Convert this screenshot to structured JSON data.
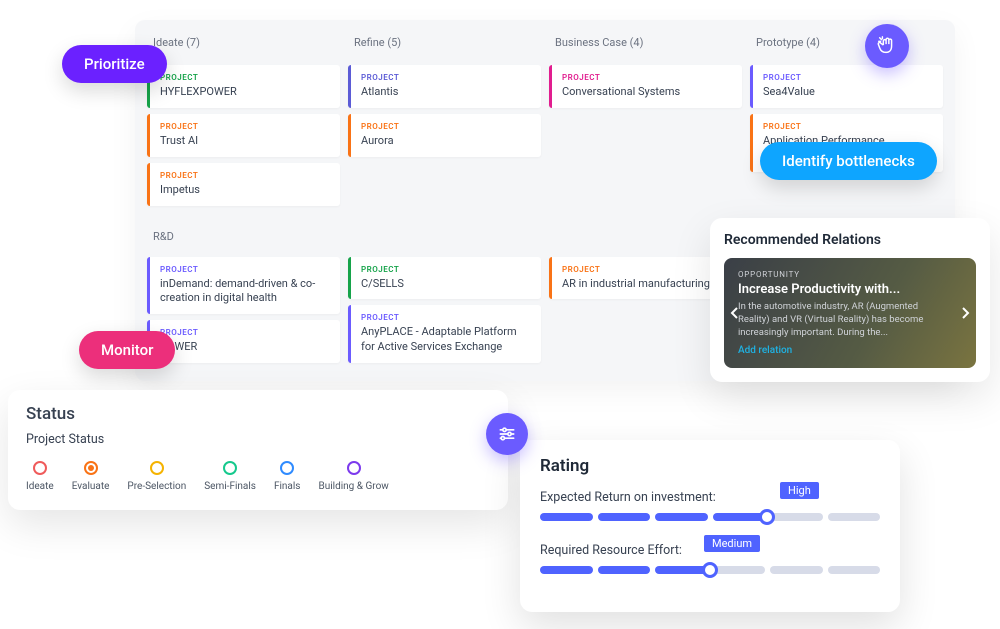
{
  "colors": {
    "purple": "#6b21ff",
    "blue": "#0ea5ff",
    "pink": "#ec2f7b",
    "indigo": "#6b5bff",
    "slider_fill": "#4f63ff",
    "slider_empty": "#d7dbe8"
  },
  "pills": {
    "prioritize": "Prioritize",
    "identify": "Identify bottlenecks",
    "monitor": "Monitor"
  },
  "board": {
    "columns": [
      {
        "label": "Ideate (7)"
      },
      {
        "label": "Refine (5)"
      },
      {
        "label": "Business Case (4)"
      },
      {
        "label": "Prototype (4)"
      }
    ],
    "section2_label": "R&D",
    "project_label": "PROJECT",
    "cards_top": {
      "c0": [
        {
          "title": "HYFLEXPOWER",
          "accent": "#16a34a",
          "label_color": "#16a34a"
        },
        {
          "title": "Trust AI",
          "accent": "#f97316",
          "label_color": "#f97316"
        },
        {
          "title": "Impetus",
          "accent": "#f97316",
          "label_color": "#f97316"
        }
      ],
      "c1": [
        {
          "title": "Atlantis",
          "accent": "#5b5bd6",
          "label_color": "#5b5bd6"
        },
        {
          "title": "Aurora",
          "accent": "#f97316",
          "label_color": "#f97316"
        }
      ],
      "c2": [
        {
          "title": "Conversational Systems",
          "accent": "#e11d8f",
          "label_color": "#e11d8f"
        }
      ],
      "c3": [
        {
          "title": "Sea4Value",
          "accent": "#6b5bff",
          "label_color": "#6b5bff"
        },
        {
          "title": "Application Performance Efficiency",
          "accent": "#f97316",
          "label_color": "#f97316"
        }
      ]
    },
    "cards_rd": {
      "c0": [
        {
          "title": "inDemand: demand-driven & co-creation in digital health",
          "accent": "#6b5bff",
          "label_color": "#6b5bff"
        },
        {
          "title": "POWER",
          "accent": "#6b5bff",
          "label_color": "#6b5bff"
        }
      ],
      "c1": [
        {
          "title": "C/SELLS",
          "accent": "#16a34a",
          "label_color": "#16a34a"
        },
        {
          "title": "AnyPLACE - Adaptable Platform for Active Services Exchange",
          "accent": "#6b5bff",
          "label_color": "#6b5bff"
        }
      ],
      "c2": [
        {
          "title": "AR in industrial manufacturing",
          "accent": "#f97316",
          "label_color": "#f97316"
        }
      ],
      "c3": []
    }
  },
  "status": {
    "title": "Status",
    "subtitle": "Project Status",
    "items": [
      {
        "label": "Ideate",
        "color": "#ef5b5b",
        "filled": false
      },
      {
        "label": "Evaluate",
        "color": "#f97316",
        "filled": true
      },
      {
        "label": "Pre-Selection",
        "color": "#f5b301",
        "filled": false
      },
      {
        "label": "Semi-Finals",
        "color": "#16c98d",
        "filled": false
      },
      {
        "label": "Finals",
        "color": "#2f8bff",
        "filled": false
      },
      {
        "label": "Building & Grow",
        "color": "#7c3aed",
        "filled": false
      }
    ]
  },
  "rating": {
    "title": "Rating",
    "roi_label": "Expected Return on investment:",
    "roi_value": "High",
    "roi_fill_segments": 4,
    "roi_total_segments": 6,
    "effort_label": "Required Resource Effort:",
    "effort_value": "Medium",
    "effort_fill_segments": 3,
    "effort_total_segments": 6
  },
  "relations": {
    "title": "Recommended Relations",
    "opportunity_label": "OPPORTUNITY",
    "card_title": "Increase Productivity with...",
    "card_desc": "In the automotive industry, AR (Augmented Reality) and VR (Virtual Reality) has become increasingly important. During the...",
    "add_label": "Add relation"
  }
}
